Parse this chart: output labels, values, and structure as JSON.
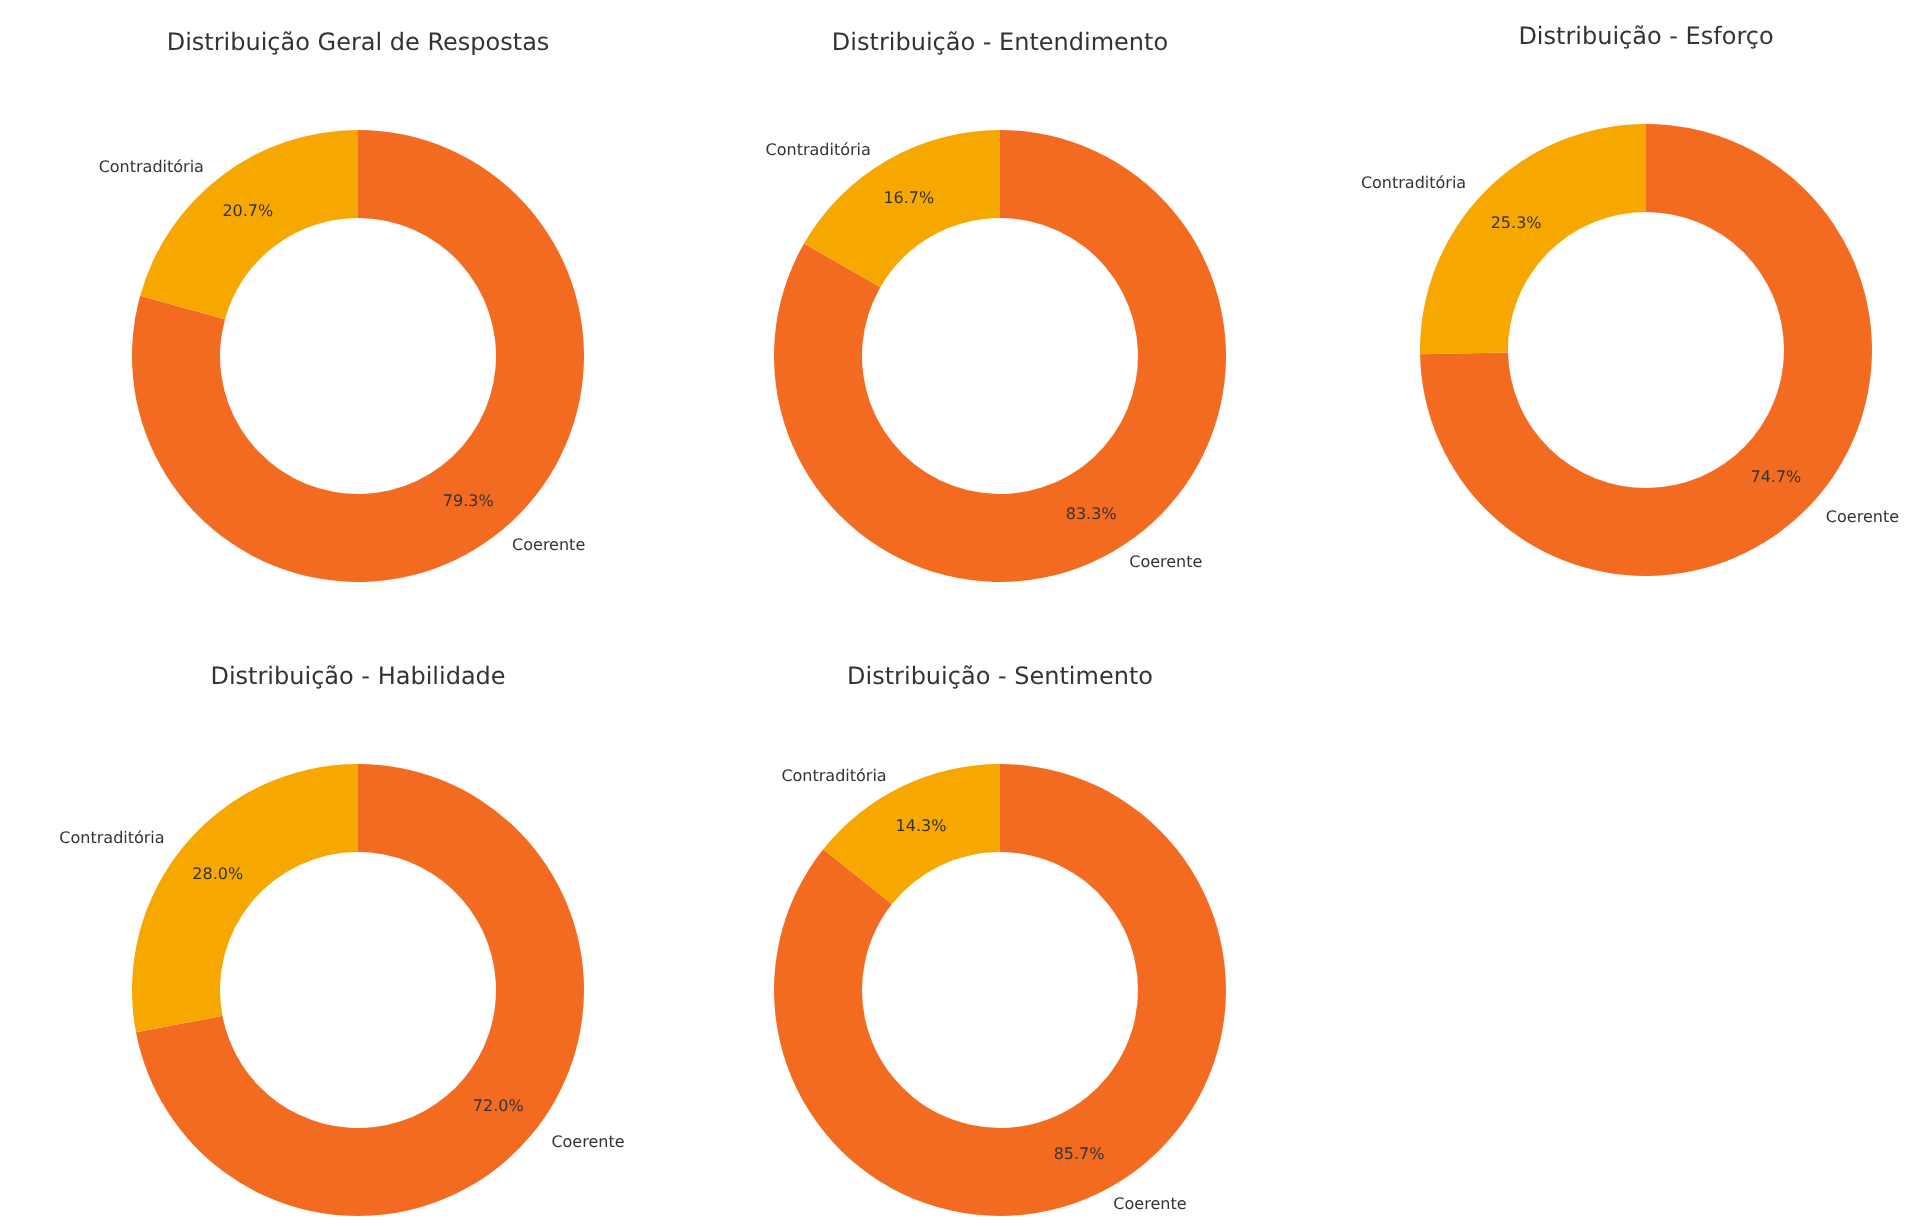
{
  "chart_data": [
    {
      "type": "donut",
      "title": "Distribuição Geral de Respostas",
      "categories": [
        "Coerente",
        "Contraditória"
      ],
      "values": [
        79.3,
        20.7
      ],
      "colors": [
        "#f26b21",
        "#f7a800"
      ],
      "value_labels": [
        "79.3%",
        "20.7%"
      ]
    },
    {
      "type": "donut",
      "title": "Distribuição - Entendimento",
      "categories": [
        "Coerente",
        "Contraditória"
      ],
      "values": [
        83.3,
        16.7
      ],
      "colors": [
        "#f26b21",
        "#f7a800"
      ],
      "value_labels": [
        "83.3%",
        "16.7%"
      ]
    },
    {
      "type": "donut",
      "title": "Distribuição - Esforço",
      "categories": [
        "Coerente",
        "Contraditória"
      ],
      "values": [
        74.7,
        25.3
      ],
      "colors": [
        "#f26b21",
        "#f7a800"
      ],
      "value_labels": [
        "74.7%",
        "25.3%"
      ]
    },
    {
      "type": "donut",
      "title": "Distribuição - Habilidade",
      "categories": [
        "Coerente",
        "Contraditória"
      ],
      "values": [
        72.0,
        28.0
      ],
      "colors": [
        "#f26b21",
        "#f7a800"
      ],
      "value_labels": [
        "72.0%",
        "28.0%"
      ]
    },
    {
      "type": "donut",
      "title": "Distribuição - Sentimento",
      "categories": [
        "Coerente",
        "Contraditória"
      ],
      "values": [
        85.7,
        14.3
      ],
      "colors": [
        "#f26b21",
        "#f7a800"
      ],
      "value_labels": [
        "85.7%",
        "14.3%"
      ]
    }
  ]
}
